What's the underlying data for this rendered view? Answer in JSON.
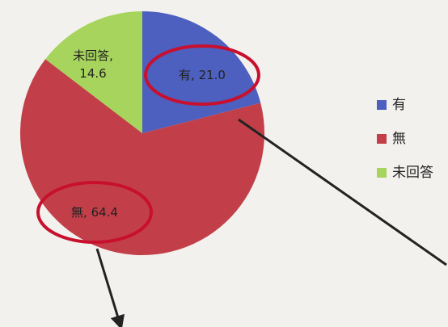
{
  "chart_data": {
    "type": "pie",
    "categories": [
      "有",
      "無",
      "未回答"
    ],
    "values": [
      21.0,
      64.4,
      14.6
    ],
    "value_labels": [
      "有, 21.0",
      "無, 64.4",
      "未回答, 14.6"
    ],
    "colors": [
      "#4d5fbf",
      "#c23f49",
      "#a6d45c"
    ],
    "legend": "right"
  }
}
